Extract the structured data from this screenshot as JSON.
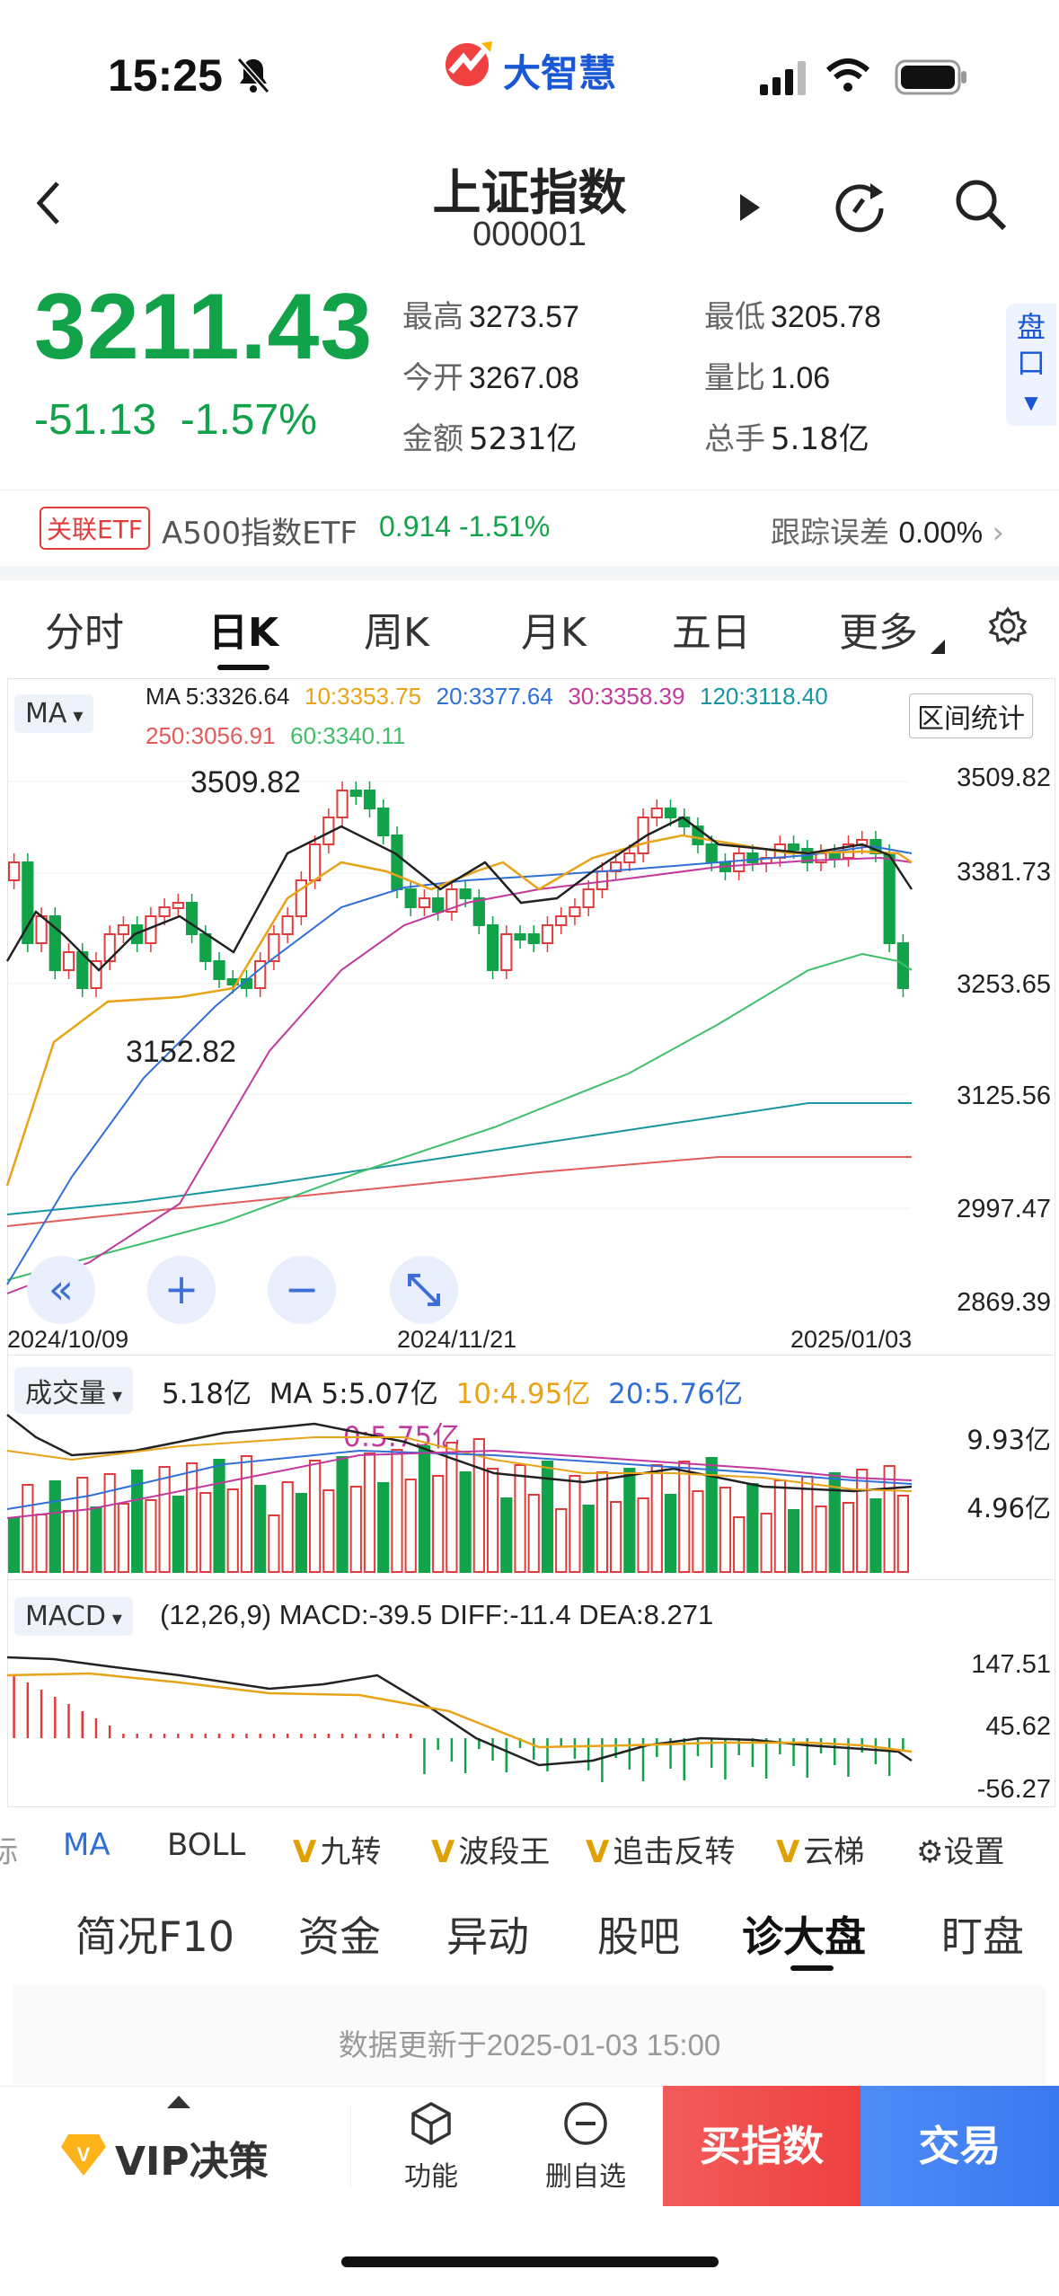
{
  "status": {
    "time": "15:25",
    "app_logo": "大智慧"
  },
  "header": {
    "title": "上证指数",
    "code": "000001"
  },
  "quote": {
    "price": "3211.43",
    "change": "-51.13",
    "change_pct": "-1.57%",
    "high_label": "最高",
    "high": "3273.57",
    "low_label": "最低",
    "low": "3205.78",
    "open_label": "今开",
    "open": "3267.08",
    "vol_ratio_label": "量比",
    "vol_ratio": "1.06",
    "amount_label": "金额",
    "amount": "5231亿",
    "turnover_label": "总手",
    "turnover": "5.18亿",
    "side_tab": "盘口"
  },
  "etf": {
    "tag": "关联ETF",
    "name": "A500指数ETF",
    "value": "0.914 -1.51%",
    "tracking_label": "跟踪误差",
    "tracking_value": "0.00%"
  },
  "ktabs": [
    "分时",
    "日K",
    "周K",
    "月K",
    "五日",
    "更多"
  ],
  "kline": {
    "ma_pill": "MA",
    "ma": [
      {
        "text": "MA  5:3326.64",
        "color": "#222222"
      },
      {
        "text": "10:3353.75",
        "color": "#e8a317"
      },
      {
        "text": "20:3377.64",
        "color": "#2f6fd6"
      },
      {
        "text": "30:3358.39",
        "color": "#c2399c"
      },
      {
        "text": "120:3118.40",
        "color": "#1596a0"
      },
      {
        "text": "250:3056.91",
        "color": "#e25c5c"
      },
      {
        "text": "60:3340.11",
        "color": "#3fbf6a"
      }
    ],
    "interval_btn": "区间统计",
    "y_ticks": [
      "3509.82",
      "3381.73",
      "3253.65",
      "3125.56",
      "2997.47",
      "2869.39"
    ],
    "high_marker": "3509.82",
    "low_marker": "3152.82",
    "dates": [
      "2024/10/09",
      "2024/11/21",
      "2025/01/03"
    ]
  },
  "volume": {
    "pill": "成交量",
    "values": [
      {
        "text": "5.18亿",
        "color": "#222222"
      },
      {
        "text": "MA 5:5.07亿",
        "color": "#222222"
      },
      {
        "text": "10:4.95亿",
        "color": "#e8a317"
      },
      {
        "text": "20:5.76亿",
        "color": "#2f6fd6"
      },
      {
        "text": "0:5.75亿",
        "color": "#c2399c"
      }
    ],
    "y_ticks": [
      "9.93亿",
      "4.96亿"
    ]
  },
  "macd": {
    "pill": "MACD",
    "text": "(12,26,9) MACD:-39.5 DIFF:-11.4 DEA:8.271",
    "y_ticks": [
      "147.51",
      "45.62",
      "-56.27"
    ]
  },
  "indicators": {
    "items": [
      "标",
      "MA",
      "BOLL",
      "九转",
      "波段王",
      "追击反转",
      "云梯"
    ],
    "settings": "设置"
  },
  "btabs": [
    "简况F10",
    "资金",
    "异动",
    "股吧",
    "诊大盘",
    "盯盘"
  ],
  "update_text": "数据更新于2025-01-03 15:00",
  "bottom": {
    "vip": "VIP决策",
    "func": "功能",
    "remove": "删自选",
    "buy": "买指数",
    "trade": "交易"
  }
}
